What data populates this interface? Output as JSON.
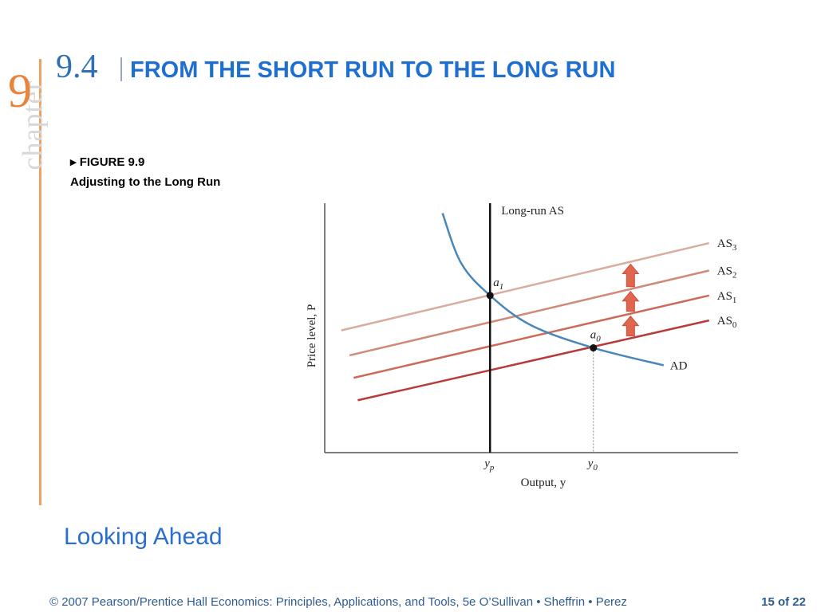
{
  "slide": {
    "chapter_word": "chapter",
    "chapter_number": "9",
    "section_number": "9.4",
    "title": "FROM THE SHORT RUN TO THE LONG RUN",
    "figure_label": "FIGURE 9.9",
    "figure_caption": "Adjusting to the Long Run",
    "bottom_heading": "Looking Ahead",
    "footer_text": "© 2007 Pearson/Prentice Hall   Economics: Principles, Applications, and Tools, 5e   O’Sullivan • Sheffrin • Perez",
    "page_indicator": "15 of 22"
  },
  "colors": {
    "accent_orange": "#e8843c",
    "title_blue": "#1f6fd0",
    "ad_curve": "#4a86b8",
    "as0": "#b83a3a",
    "as1": "#cc6a58",
    "as2": "#d08a78",
    "as3": "#d9aca0",
    "arrow": "#e0674e"
  },
  "chart_data": {
    "type": "line",
    "title": "",
    "xlabel": "Output, y",
    "ylabel": "Price level, P",
    "xlim": [
      0,
      10
    ],
    "ylim": [
      0,
      10
    ],
    "grid": false,
    "x_ticks": [
      {
        "label_main": "y",
        "label_sub": "p",
        "x": 4
      },
      {
        "label_main": "y",
        "label_sub": "0",
        "x": 6.5
      }
    ],
    "series": [
      {
        "name_main": "AS",
        "name_sub": "0",
        "kind": "line",
        "points": [
          [
            0.8,
            2.1
          ],
          [
            9.3,
            5.3
          ]
        ]
      },
      {
        "name_main": "AS",
        "name_sub": "1",
        "kind": "line",
        "points": [
          [
            0.7,
            3.0
          ],
          [
            9.3,
            6.3
          ]
        ]
      },
      {
        "name_main": "AS",
        "name_sub": "2",
        "kind": "line",
        "points": [
          [
            0.6,
            3.9
          ],
          [
            9.3,
            7.3
          ]
        ]
      },
      {
        "name_main": "AS",
        "name_sub": "3",
        "kind": "line",
        "points": [
          [
            0.4,
            4.9
          ],
          [
            9.3,
            8.4
          ]
        ]
      },
      {
        "name_main": "AD",
        "name_sub": "",
        "kind": "curve",
        "points": [
          [
            2.85,
            9.6
          ],
          [
            3.3,
            7.6
          ],
          [
            4.0,
            6.3
          ],
          [
            5.0,
            5.1
          ],
          [
            6.5,
            4.2
          ],
          [
            8.2,
            3.5
          ]
        ]
      },
      {
        "name_main": "Long-run AS",
        "name_sub": "",
        "kind": "vertical",
        "points": [
          [
            4.0,
            0
          ],
          [
            4.0,
            10
          ]
        ]
      }
    ],
    "points": [
      {
        "label_main": "a",
        "label_sub": "1",
        "x": 4.0,
        "y": 6.3
      },
      {
        "label_main": "a",
        "label_sub": "0",
        "x": 6.5,
        "y": 4.2
      }
    ],
    "annotations": [
      "upward shift arrows from AS0 to AS3"
    ]
  }
}
